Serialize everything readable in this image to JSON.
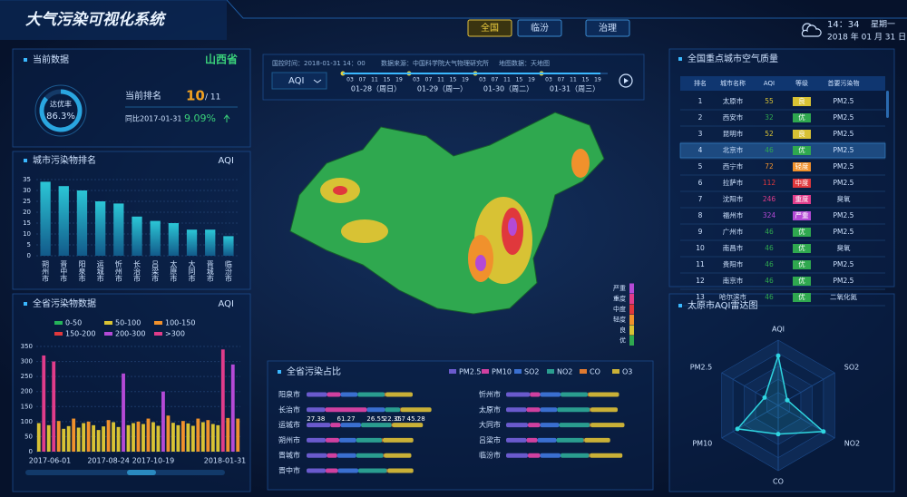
{
  "header": {
    "title": "大气污染可视化系统",
    "tabs": [
      "全国",
      "临汾",
      "治理"
    ],
    "time": "14：34",
    "weekday": "星期一",
    "date": "2018 年 01 月 31 日"
  },
  "current": {
    "title": "当前数据",
    "province": "山西省",
    "rate_label": "达优率",
    "rate": {
      "value": 86.3,
      "label": "86.3%"
    },
    "rank_label": "当前排名",
    "rank": "10",
    "rank_total": "/ 11",
    "compare_label": "同比2017-01-31",
    "compare": "9.09%"
  },
  "city_rank": {
    "type": "bar",
    "title": "城市污染物排名",
    "unit": "AQI",
    "categories": [
      "朔州市",
      "晋中市",
      "阳泉市",
      "运城市",
      "忻州市",
      "长治市",
      "吕梁市",
      "太原市",
      "大同市",
      "晋城市",
      "临汾市"
    ],
    "values": [
      34,
      32,
      30,
      25,
      24,
      18,
      16,
      15,
      12,
      12,
      9
    ],
    "color": "#1fa5b8",
    "ylim": [
      0,
      35
    ],
    "yticks": [
      0,
      5,
      10,
      15,
      20,
      25,
      30,
      35
    ],
    "grid": true
  },
  "province_data": {
    "type": "bar",
    "title": "全省污染物数据",
    "unit": "AQI",
    "levels": [
      {
        "label": "0-50",
        "color": "#25b35a",
        "range": [
          0,
          50
        ]
      },
      {
        "label": "50-100",
        "color": "#d8c234",
        "range": [
          50,
          100
        ]
      },
      {
        "label": "100-150",
        "color": "#f0912c",
        "range": [
          100,
          150
        ]
      },
      {
        "label": "150-200",
        "color": "#e0383c",
        "range": [
          150,
          200
        ]
      },
      {
        "label": "200-300",
        "color": "#b44ad6",
        "range": [
          200,
          300
        ]
      },
      {
        "label": ">300",
        "color": "#e03c8a",
        "range": [
          300,
          null
        ]
      }
    ],
    "categories": [
      "2017-06-01",
      null,
      null,
      null,
      null,
      null,
      null,
      null,
      null,
      null,
      null,
      null,
      null,
      null,
      "2017-08-24",
      null,
      null,
      null,
      null,
      null,
      null,
      null,
      null,
      "2017-10-19",
      null,
      null,
      null,
      null,
      null,
      null,
      null,
      null,
      null,
      null,
      null,
      null,
      null,
      null,
      null,
      null,
      "2018-01-31"
    ],
    "values": [
      95,
      320,
      88,
      300,
      102,
      76,
      85,
      110,
      80,
      95,
      100,
      88,
      72,
      84,
      105,
      98,
      82,
      260,
      88,
      95,
      100,
      92,
      110,
      98,
      86,
      200,
      120,
      96,
      88,
      102,
      94,
      86,
      110,
      98,
      105,
      92,
      88,
      340,
      112,
      290,
      110
    ],
    "ylim": [
      0,
      350
    ],
    "yticks": [
      0,
      50,
      100,
      150,
      200,
      250,
      300,
      350
    ],
    "grid": true
  },
  "timeline": {
    "time": "国控时间：2018-01-31 14：00",
    "source": "数据来源：中国科学院大气物理研究所",
    "map_source": "地图数据：天地图",
    "selector": "AQI",
    "hours": [
      "03",
      "07",
      "11",
      "15",
      "19"
    ],
    "days": [
      "01-28（周日）",
      "01-29（周一）",
      "01-30（周二）",
      "01-31（周三）"
    ]
  },
  "map_legend": [
    {
      "label": "严重",
      "color": "#b44ad6"
    },
    {
      "label": "重度",
      "color": "#e03c8a"
    },
    {
      "label": "中度",
      "color": "#e0383c"
    },
    {
      "label": "轻度",
      "color": "#f0912c"
    },
    {
      "label": "良",
      "color": "#d8c234"
    },
    {
      "label": "优",
      "color": "#2fa84f"
    }
  ],
  "share": {
    "type": "stacked-bar",
    "title": "全省污染占比",
    "series": [
      {
        "name": "PM2.5",
        "color": "#6a5acd"
      },
      {
        "name": "PM10",
        "color": "#d040a0"
      },
      {
        "name": "SO2",
        "color": "#3a6fd0"
      },
      {
        "name": "NO2",
        "color": "#2a9d8f"
      },
      {
        "name": "CO",
        "color": "#e07a30"
      },
      {
        "name": "O3",
        "color": "#c9b037"
      }
    ],
    "cities": [
      {
        "name": "阳泉市",
        "values": [
          30,
          20,
          25,
          40,
          1,
          40
        ]
      },
      {
        "name": "长治市",
        "values": [
          27.38,
          61.27,
          26.55,
          22.35,
          0.7,
          45.28
        ]
      },
      {
        "name": "运城市",
        "values": [
          35,
          15,
          30,
          45,
          1,
          45
        ]
      },
      {
        "name": "朔州市",
        "values": [
          28,
          20,
          25,
          38,
          1,
          45
        ]
      },
      {
        "name": "晋城市",
        "values": [
          30,
          15,
          28,
          40,
          1,
          40
        ]
      },
      {
        "name": "晋中市",
        "values": [
          28,
          18,
          30,
          42,
          1,
          38
        ]
      },
      {
        "name": "忻州市",
        "values": [
          35,
          15,
          30,
          40,
          1,
          45
        ]
      },
      {
        "name": "太原市",
        "values": [
          30,
          20,
          25,
          48,
          1,
          40
        ]
      },
      {
        "name": "大同市",
        "values": [
          32,
          18,
          28,
          45,
          1,
          50
        ]
      },
      {
        "name": "吕梁市",
        "values": [
          30,
          16,
          28,
          40,
          1,
          38
        ]
      },
      {
        "name": "临汾市",
        "values": [
          32,
          18,
          30,
          42,
          1,
          48
        ]
      }
    ]
  },
  "city_table": {
    "title": "全国重点城市空气质量",
    "columns": [
      "排名",
      "城市名称",
      "AQI",
      "等级",
      "首要污染物"
    ],
    "rows": [
      [
        "1",
        "太原市",
        "55",
        "良",
        "PM2.5"
      ],
      [
        "2",
        "西安市",
        "32",
        "优",
        "PM2.5"
      ],
      [
        "3",
        "昆明市",
        "52",
        "良",
        "PM2.5"
      ],
      [
        "4",
        "北京市",
        "46",
        "优",
        "PM2.5"
      ],
      [
        "5",
        "西宁市",
        "72",
        "轻度",
        "PM2.5"
      ],
      [
        "6",
        "拉萨市",
        "112",
        "中度",
        "PM2.5"
      ],
      [
        "7",
        "沈阳市",
        "246",
        "重度",
        "臭氧"
      ],
      [
        "8",
        "福州市",
        "324",
        "严重",
        "PM2.5"
      ],
      [
        "9",
        "广州市",
        "46",
        "优",
        "PM2.5"
      ],
      [
        "10",
        "南昌市",
        "46",
        "优",
        "臭氧"
      ],
      [
        "11",
        "贵阳市",
        "46",
        "优",
        "PM2.5"
      ],
      [
        "12",
        "南京市",
        "46",
        "优",
        "PM2.5"
      ],
      [
        "13",
        "哈尔滨市",
        "46",
        "优",
        "二氧化氮"
      ]
    ]
  },
  "radar": {
    "type": "radar",
    "title": "太原市AQI雷达图",
    "axes": [
      "AQI",
      "SO2",
      "NO2",
      "CO",
      "PM10",
      "PM2.5"
    ],
    "values": [
      3.8,
      0.8,
      4.0,
      2.2,
      3.6,
      1.2
    ],
    "rlim": [
      0,
      5
    ],
    "color": "#2fd5e0"
  }
}
